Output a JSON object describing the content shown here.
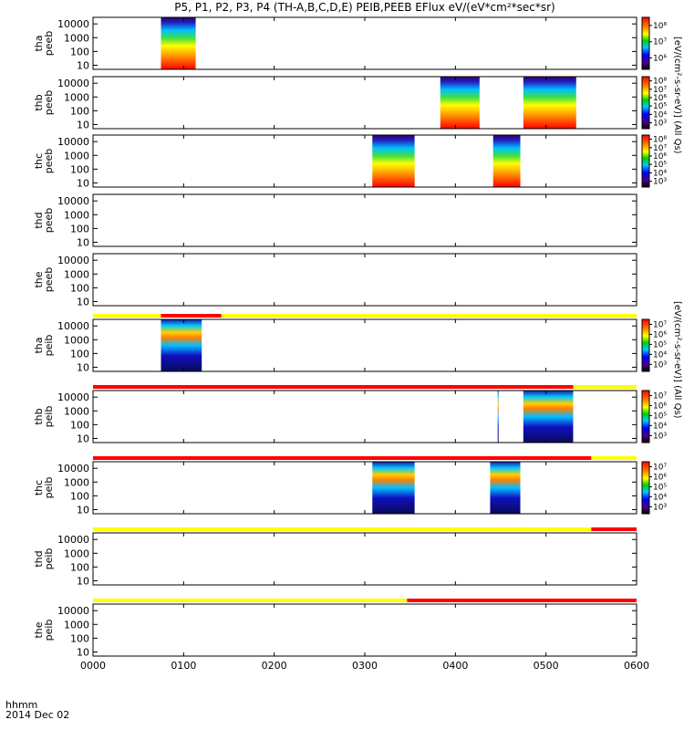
{
  "title": "P5, P1, P2, P3, P4 (TH-A,B,C,D,E) PEIB,PEEB EFlux eV/(eV*cm²*sec*sr)",
  "time_axis": {
    "label": "hhmm",
    "date": "2014 Dec 02",
    "tick_labels": [
      "0000",
      "0100",
      "0200",
      "0300",
      "0400",
      "0500",
      "0600"
    ]
  },
  "colorbar_labels": {
    "electron": "[eV/(cm²-s-sr-eV)] (All Qs)",
    "ion": "[eV/(cm²-s-sr-eV)] (All Qs)"
  },
  "colors": {
    "flag_yellow": "#ffff00",
    "flag_red": "#ff0000",
    "background": "#ffffff"
  },
  "chart_data": {
    "type": "heatmap",
    "x_unit": "UT hhmm",
    "xlim": [
      "0000",
      "0600"
    ],
    "ylim": [
      5,
      30000
    ],
    "yscale": "log",
    "yticks": [
      "10",
      "100",
      "1000",
      "10000"
    ],
    "panels": [
      {
        "probe": "tha",
        "species": "peeb",
        "ylabel": [
          "tha",
          "peeb"
        ],
        "coverage": [
          [
            "0045",
            "0108"
          ]
        ],
        "colorbar_ticks": [
          "10⁶",
          "10⁷",
          "10⁸"
        ]
      },
      {
        "probe": "thb",
        "species": "peeb",
        "ylabel": [
          "thb",
          "peeb"
        ],
        "coverage": [
          [
            "0350",
            "0416"
          ],
          [
            "0445",
            "0480"
          ]
        ],
        "colorbar_ticks": [
          "10³",
          "10⁴",
          "10⁵",
          "10⁶",
          "10⁷",
          "10⁸"
        ]
      },
      {
        "probe": "thc",
        "species": "peeb",
        "ylabel": [
          "thc",
          "peeb"
        ],
        "coverage": [
          [
            "0265",
            "0293"
          ],
          [
            "0385",
            "0443"
          ]
        ],
        "colorbar_ticks": [
          "10³",
          "10⁴",
          "10⁵",
          "10⁶",
          "10⁷",
          "10⁸"
        ]
      },
      {
        "probe": "thd",
        "species": "peeb",
        "ylabel": [
          "thd",
          "peeb"
        ],
        "coverage": []
      },
      {
        "probe": "the",
        "species": "peeb",
        "ylabel": [
          "the",
          "peeb"
        ],
        "coverage": []
      },
      {
        "probe": "tha",
        "species": "peib",
        "ylabel": [
          "tha",
          "peib"
        ],
        "coverage": [
          [
            "0045",
            "0072"
          ]
        ],
        "colorbar_ticks": [
          "10³",
          "10⁴",
          "10⁵",
          "10⁶",
          "10⁷"
        ]
      },
      {
        "probe": "thb",
        "species": "peib",
        "ylabel": [
          "thb",
          "peib"
        ],
        "coverage": [
          [
            "0388",
            "0414"
          ],
          [
            "0445",
            "0478"
          ]
        ],
        "colorbar_ticks": [
          "10³",
          "10⁴",
          "10⁵",
          "10⁶",
          "10⁷"
        ]
      },
      {
        "probe": "thc",
        "species": "peib",
        "ylabel": [
          "thc",
          "peib"
        ],
        "coverage": [
          [
            "0265",
            "0293"
          ],
          [
            "0383",
            "0443"
          ]
        ],
        "colorbar_ticks": [
          "10³",
          "10⁴",
          "10⁵",
          "10⁶",
          "10⁷"
        ]
      },
      {
        "probe": "thd",
        "species": "peib",
        "ylabel": [
          "thd",
          "peib"
        ],
        "coverage": []
      },
      {
        "probe": "the",
        "species": "peib",
        "ylabel": [
          "the",
          "peib"
        ],
        "coverage": []
      }
    ],
    "flag_bars": [
      {
        "before_panel": 5,
        "segments": [
          [
            "0000",
            "0045",
            "yellow"
          ],
          [
            "0045",
            "0085",
            "red"
          ],
          [
            "0085",
            "0600",
            "yellow"
          ]
        ]
      },
      {
        "before_panel": 6,
        "segments": [
          [
            "0000",
            "0478",
            "red"
          ],
          [
            "0478",
            "0600",
            "yellow"
          ]
        ]
      },
      {
        "before_panel": 7,
        "segments": [
          [
            "0000",
            "0490",
            "red"
          ],
          [
            "0490",
            "0600",
            "yellow"
          ]
        ]
      },
      {
        "before_panel": 8,
        "segments": [
          [
            "0000",
            "0490",
            "yellow"
          ],
          [
            "0490",
            "0600",
            "red"
          ]
        ]
      },
      {
        "before_panel": 9,
        "segments": [
          [
            "0000",
            "0288",
            "yellow"
          ],
          [
            "0288",
            "0600",
            "red"
          ]
        ]
      }
    ]
  }
}
